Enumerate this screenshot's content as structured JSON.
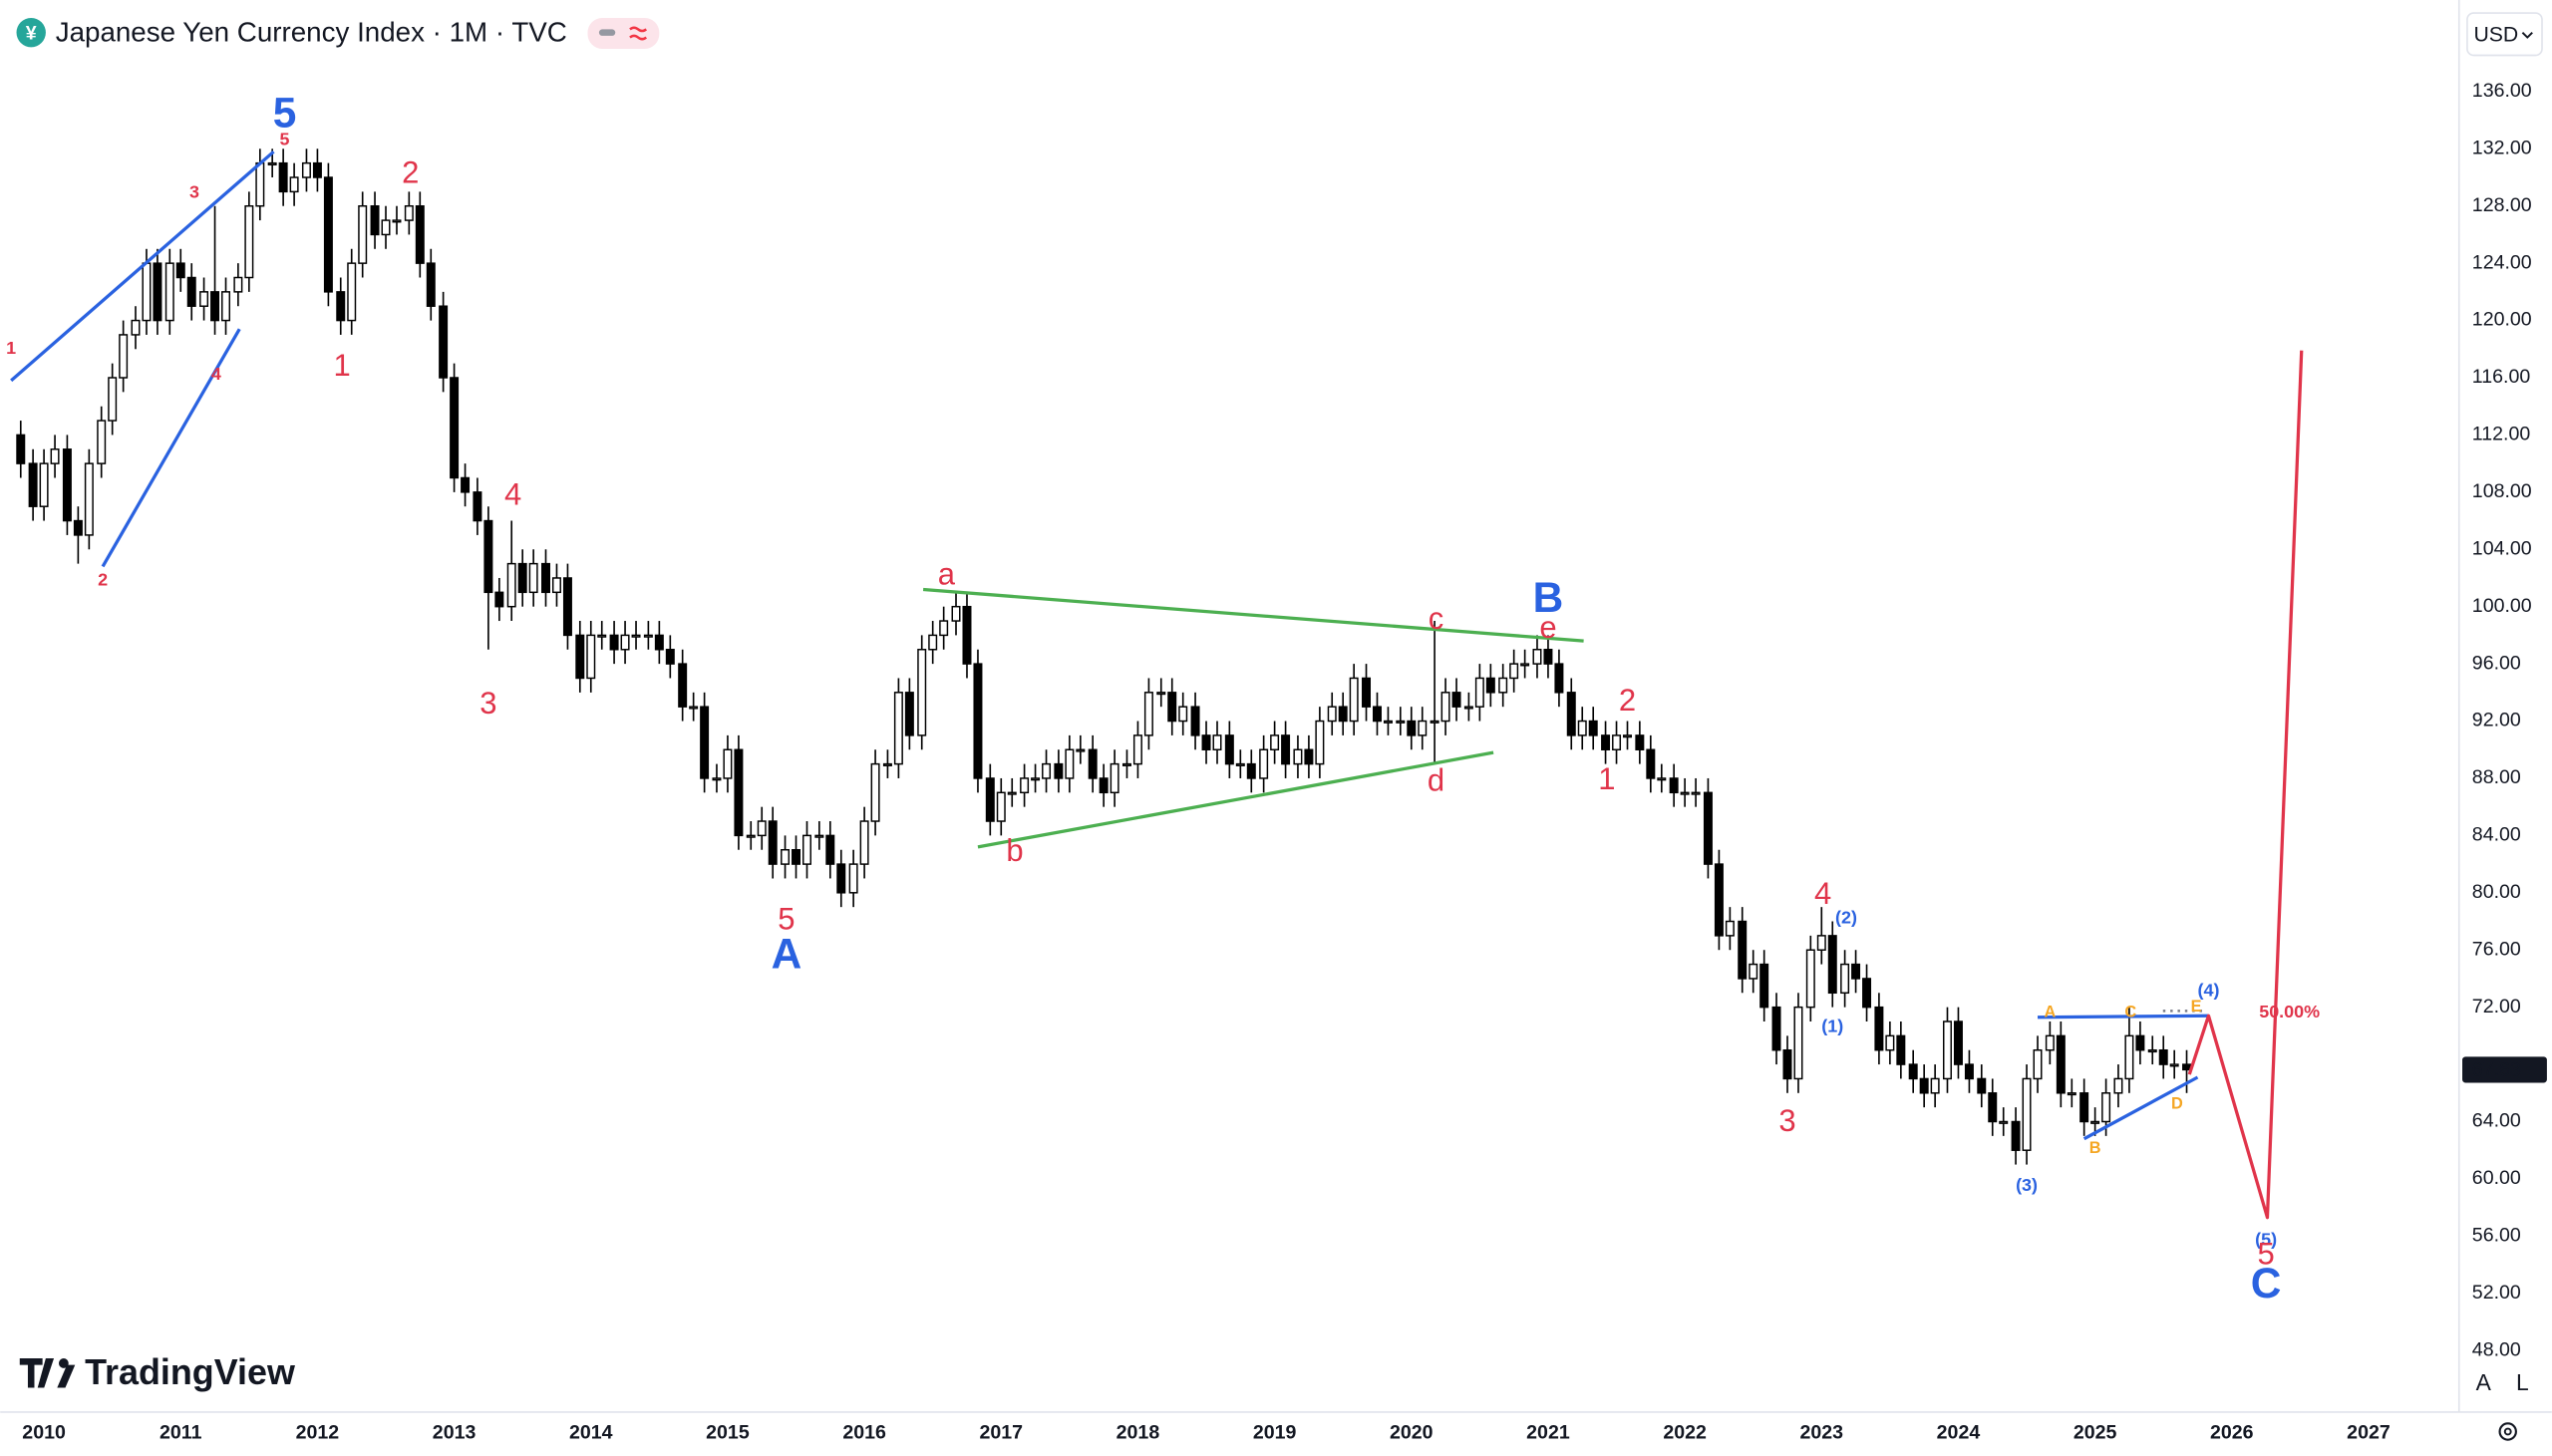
{
  "chart_data": {
    "type": "candlestick",
    "title": "Japanese Yen Currency Index · 1M · TVC",
    "symbol_icon": "¥",
    "currency": "USD",
    "watermark": "TradingView",
    "controls": [
      "A",
      "L"
    ],
    "up_color": "#ffffff",
    "down_color": "#000000",
    "grid": false,
    "xlim": [
      2009.68,
      2027.65
    ],
    "ylim": [
      43.7,
      142.4
    ],
    "xticks": [
      2010,
      2011,
      2012,
      2013,
      2014,
      2015,
      2016,
      2017,
      2018,
      2019,
      2020,
      2021,
      2022,
      2023,
      2024,
      2025,
      2026,
      2027
    ],
    "yticks": [
      {
        "value": 48,
        "label": "48.00"
      },
      {
        "value": 52,
        "label": "52.00"
      },
      {
        "value": 56,
        "label": "56.00"
      },
      {
        "value": 60,
        "label": "60.00"
      },
      {
        "value": 64,
        "label": "64.00"
      },
      {
        "value": 72,
        "label": "72.00"
      },
      {
        "value": 76,
        "label": "76.00"
      },
      {
        "value": 80,
        "label": "80.00"
      },
      {
        "value": 84,
        "label": "84.00"
      },
      {
        "value": 88,
        "label": "88.00"
      },
      {
        "value": 92,
        "label": "92.00"
      },
      {
        "value": 96,
        "label": "96.00"
      },
      {
        "value": 100,
        "label": "100.00"
      },
      {
        "value": 104,
        "label": "104.00"
      },
      {
        "value": 108,
        "label": "108.00"
      },
      {
        "value": 112,
        "label": "112.00"
      },
      {
        "value": 116,
        "label": "116.00"
      },
      {
        "value": 120,
        "label": "120.00"
      },
      {
        "value": 124,
        "label": "124.00"
      },
      {
        "value": 128,
        "label": "128.00"
      },
      {
        "value": 132,
        "label": "132.00"
      },
      {
        "value": 136,
        "label": "136.00"
      }
    ],
    "x": [
      2009.83,
      2009.92,
      2010,
      2010.08,
      2010.17,
      2010.25,
      2010.33,
      2010.42,
      2010.5,
      2010.58,
      2010.67,
      2010.75,
      2010.83,
      2010.92,
      2011,
      2011.08,
      2011.17,
      2011.25,
      2011.33,
      2011.42,
      2011.5,
      2011.58,
      2011.67,
      2011.75,
      2011.83,
      2011.92,
      2012,
      2012.08,
      2012.17,
      2012.25,
      2012.33,
      2012.42,
      2012.5,
      2012.58,
      2012.67,
      2012.75,
      2012.83,
      2012.92,
      2013,
      2013.08,
      2013.17,
      2013.25,
      2013.33,
      2013.42,
      2013.5,
      2013.58,
      2013.67,
      2013.75,
      2013.83,
      2013.92,
      2014,
      2014.08,
      2014.17,
      2014.25,
      2014.33,
      2014.42,
      2014.5,
      2014.58,
      2014.67,
      2014.75,
      2014.83,
      2014.92,
      2015,
      2015.08,
      2015.17,
      2015.25,
      2015.33,
      2015.42,
      2015.5,
      2015.58,
      2015.67,
      2015.75,
      2015.83,
      2015.92,
      2016,
      2016.08,
      2016.17,
      2016.25,
      2016.33,
      2016.42,
      2016.5,
      2016.58,
      2016.67,
      2016.75,
      2016.83,
      2016.92,
      2017,
      2017.08,
      2017.17,
      2017.25,
      2017.33,
      2017.42,
      2017.5,
      2017.58,
      2017.67,
      2017.75,
      2017.83,
      2017.92,
      2018,
      2018.08,
      2018.17,
      2018.25,
      2018.33,
      2018.42,
      2018.5,
      2018.58,
      2018.67,
      2018.75,
      2018.83,
      2018.92,
      2019,
      2019.08,
      2019.17,
      2019.25,
      2019.33,
      2019.42,
      2019.5,
      2019.58,
      2019.67,
      2019.75,
      2019.83,
      2019.92,
      2020,
      2020.08,
      2020.17,
      2020.25,
      2020.33,
      2020.42,
      2020.5,
      2020.58,
      2020.67,
      2020.75,
      2020.83,
      2020.92,
      2021,
      2021.08,
      2021.17,
      2021.25,
      2021.33,
      2021.42,
      2021.5,
      2021.58,
      2021.67,
      2021.75,
      2021.83,
      2021.92,
      2022,
      2022.08,
      2022.17,
      2022.25,
      2022.33,
      2022.42,
      2022.5,
      2022.58,
      2022.67,
      2022.75,
      2022.83,
      2022.92,
      2023,
      2023.08,
      2023.17,
      2023.25,
      2023.33,
      2023.42,
      2023.5,
      2023.58,
      2023.67,
      2023.75,
      2023.83,
      2023.92,
      2024,
      2024.08,
      2024.17,
      2024.25,
      2024.33,
      2024.42,
      2024.5,
      2024.58,
      2024.67,
      2024.75,
      2024.83,
      2024.92,
      2025,
      2025.08,
      2025.17,
      2025.25,
      2025.33,
      2025.42,
      2025.5,
      2025.58,
      2025.67
    ],
    "open": [
      112,
      110,
      107,
      110,
      111,
      106,
      105,
      110,
      113,
      116,
      119,
      120,
      124,
      120,
      124,
      123,
      121,
      122,
      120,
      122,
      123,
      128,
      131,
      131,
      129,
      130,
      131,
      130,
      122,
      120,
      124,
      128,
      126,
      127,
      127,
      128,
      124,
      121,
      116,
      109,
      108,
      106,
      101,
      100,
      103,
      101,
      103,
      101,
      102,
      98,
      95,
      98,
      98,
      97,
      98,
      98,
      98,
      97,
      96,
      93,
      93,
      88,
      88,
      90,
      84,
      84,
      85,
      82,
      83,
      82,
      84,
      84,
      82,
      80,
      82,
      85,
      89,
      89,
      94,
      91,
      97,
      98,
      99,
      100,
      96,
      88,
      85,
      87,
      87,
      88,
      88,
      89,
      88,
      90,
      90,
      88,
      87,
      89,
      89,
      91,
      94,
      94,
      92,
      93,
      91,
      90,
      91,
      89,
      89,
      88,
      90,
      91,
      89,
      90,
      89,
      92,
      93,
      92,
      95,
      93,
      92,
      92,
      92,
      91,
      92,
      92,
      94,
      93,
      93,
      95,
      94,
      95,
      96,
      96,
      97,
      96,
      94,
      91,
      92,
      91,
      90,
      91,
      91,
      90,
      88,
      88,
      87,
      87,
      87,
      82,
      77,
      78,
      74,
      75,
      72,
      69,
      67,
      72,
      76,
      77,
      73,
      75,
      74,
      72,
      69,
      70,
      68,
      67,
      66,
      67,
      71,
      68,
      67,
      66,
      64,
      64,
      62,
      67,
      69,
      70,
      66,
      66,
      64,
      64,
      66,
      67,
      70,
      69,
      69,
      68,
      68
    ],
    "high": [
      113,
      111,
      111,
      112,
      112,
      107,
      111,
      114,
      117,
      120,
      121,
      125,
      125,
      125,
      125,
      124,
      123,
      128,
      123,
      124,
      129,
      132,
      132,
      132,
      131,
      132,
      132,
      131,
      123,
      125,
      129,
      129,
      128,
      128,
      129,
      129,
      125,
      122,
      117,
      110,
      109,
      107,
      102,
      106,
      104,
      104,
      104,
      103,
      103,
      99,
      99,
      99,
      99,
      99,
      99,
      99,
      99,
      98,
      97,
      94,
      94,
      89,
      91,
      91,
      85,
      86,
      86,
      84,
      84,
      85,
      85,
      85,
      83,
      83,
      86,
      90,
      90,
      95,
      95,
      98,
      99,
      100,
      101,
      101,
      97,
      89,
      88,
      88,
      89,
      89,
      90,
      90,
      91,
      91,
      91,
      89,
      90,
      90,
      92,
      95,
      95,
      95,
      94,
      94,
      92,
      92,
      92,
      90,
      90,
      91,
      92,
      92,
      91,
      91,
      93,
      94,
      94,
      96,
      96,
      94,
      93,
      93,
      93,
      93,
      99,
      95,
      95,
      94,
      96,
      96,
      96,
      97,
      97,
      98,
      98,
      97,
      95,
      93,
      93,
      92,
      92,
      92,
      92,
      91,
      89,
      89,
      88,
      88,
      88,
      83,
      79,
      79,
      76,
      76,
      73,
      70,
      73,
      77,
      79,
      78,
      76,
      76,
      75,
      73,
      71,
      71,
      69,
      68,
      68,
      72,
      72,
      69,
      68,
      67,
      65,
      65,
      68,
      70,
      71,
      71,
      67,
      67,
      65,
      67,
      68,
      72,
      71,
      70,
      70,
      69,
      69
    ],
    "low": [
      109,
      106,
      106,
      109,
      105,
      103,
      104,
      109,
      112,
      115,
      118,
      119,
      119,
      119,
      122,
      120,
      120,
      119,
      119,
      121,
      122,
      127,
      130,
      128,
      128,
      129,
      129,
      121,
      119,
      119,
      123,
      125,
      125,
      126,
      126,
      123,
      120,
      115,
      108,
      107,
      105,
      97,
      99,
      99,
      100,
      100,
      100,
      100,
      97,
      94,
      94,
      97,
      96,
      96,
      97,
      97,
      96,
      95,
      92,
      92,
      87,
      87,
      87,
      83,
      83,
      83,
      81,
      81,
      81,
      81,
      83,
      81,
      79,
      79,
      81,
      84,
      88,
      88,
      90,
      90,
      96,
      97,
      98,
      95,
      87,
      84,
      84,
      86,
      86,
      87,
      87,
      87,
      87,
      89,
      87,
      86,
      86,
      88,
      88,
      90,
      93,
      91,
      91,
      90,
      89,
      89,
      88,
      88,
      87,
      87,
      89,
      88,
      88,
      88,
      88,
      91,
      91,
      91,
      92,
      91,
      91,
      91,
      90,
      90,
      89,
      91,
      92,
      92,
      92,
      93,
      93,
      94,
      95,
      95,
      95,
      93,
      90,
      90,
      90,
      89,
      89,
      90,
      89,
      87,
      87,
      86,
      86,
      86,
      81,
      76,
      76,
      73,
      73,
      71,
      68,
      66,
      66,
      71,
      75,
      72,
      72,
      73,
      71,
      68,
      68,
      67,
      66,
      65,
      65,
      66,
      67,
      66,
      65,
      63,
      63,
      61,
      61,
      66,
      68,
      65,
      65,
      63,
      63,
      63,
      65,
      66,
      68,
      68,
      67,
      67,
      66
    ],
    "close": [
      110,
      107,
      110,
      111,
      106,
      105,
      110,
      113,
      116,
      119,
      120,
      124,
      120,
      124,
      123,
      121,
      122,
      120,
      122,
      123,
      128,
      131,
      131,
      129,
      130,
      131,
      130,
      122,
      120,
      124,
      128,
      126,
      127,
      127,
      128,
      124,
      121,
      116,
      109,
      108,
      106,
      101,
      100,
      103,
      101,
      103,
      101,
      102,
      98,
      95,
      98,
      98,
      97,
      98,
      98,
      98,
      97,
      96,
      93,
      93,
      88,
      88,
      90,
      84,
      84,
      85,
      82,
      83,
      82,
      84,
      84,
      82,
      80,
      82,
      85,
      89,
      89,
      94,
      91,
      97,
      98,
      99,
      100,
      96,
      88,
      85,
      87,
      87,
      88,
      88,
      89,
      88,
      90,
      90,
      88,
      87,
      89,
      89,
      91,
      94,
      94,
      92,
      93,
      91,
      90,
      91,
      89,
      89,
      88,
      90,
      91,
      89,
      90,
      89,
      92,
      93,
      92,
      95,
      93,
      92,
      92,
      92,
      91,
      92,
      92,
      94,
      93,
      93,
      95,
      94,
      95,
      96,
      96,
      97,
      96,
      94,
      91,
      92,
      91,
      90,
      91,
      91,
      90,
      88,
      88,
      87,
      87,
      87,
      82,
      77,
      78,
      74,
      75,
      72,
      69,
      67,
      72,
      76,
      77,
      73,
      75,
      74,
      72,
      69,
      70,
      68,
      67,
      66,
      67,
      71,
      68,
      67,
      66,
      64,
      64,
      62,
      67,
      69,
      70,
      66,
      66,
      64,
      64,
      66,
      67,
      70,
      69,
      69,
      68,
      68,
      67.63
    ],
    "annotations": [
      {
        "text": "1",
        "x": 2009.76,
        "y": 118.0,
        "color": "#e0344a",
        "size": "small"
      },
      {
        "text": "2",
        "x": 2010.43,
        "y": 101.8,
        "color": "#e0344a",
        "size": "small"
      },
      {
        "text": "3",
        "x": 2011.1,
        "y": 128.9,
        "color": "#e0344a",
        "size": "small"
      },
      {
        "text": "4",
        "x": 2011.26,
        "y": 116.2,
        "color": "#e0344a",
        "size": "small"
      },
      {
        "text": "5",
        "x": 2011.76,
        "y": 132.6,
        "color": "#e0344a",
        "size": "small"
      },
      {
        "text": "5",
        "x": 2011.76,
        "y": 134.3,
        "color": "#2a62e0",
        "size": "large"
      },
      {
        "text": "2",
        "x": 2012.68,
        "y": 130.2,
        "color": "#e0344a",
        "size": "medium"
      },
      {
        "text": "1",
        "x": 2012.18,
        "y": 116.7,
        "color": "#e0344a",
        "size": "medium"
      },
      {
        "text": "4",
        "x": 2013.43,
        "y": 107.7,
        "color": "#e0344a",
        "size": "medium"
      },
      {
        "text": "3",
        "x": 2013.25,
        "y": 93.1,
        "color": "#e0344a",
        "size": "medium"
      },
      {
        "text": "5",
        "x": 2015.43,
        "y": 78.0,
        "color": "#e0344a",
        "size": "medium"
      },
      {
        "text": "A",
        "x": 2015.43,
        "y": 75.5,
        "color": "#2a62e0",
        "size": "large"
      },
      {
        "text": "a",
        "x": 2016.6,
        "y": 102.1,
        "color": "#e0344a",
        "size": "medium"
      },
      {
        "text": "b",
        "x": 2017.1,
        "y": 82.8,
        "color": "#e0344a",
        "size": "medium"
      },
      {
        "text": "c",
        "x": 2020.18,
        "y": 99.0,
        "color": "#e0344a",
        "size": "medium"
      },
      {
        "text": "d",
        "x": 2020.18,
        "y": 87.7,
        "color": "#e0344a",
        "size": "medium"
      },
      {
        "text": "e",
        "x": 2021.0,
        "y": 98.4,
        "color": "#e0344a",
        "size": "medium"
      },
      {
        "text": "B",
        "x": 2021.0,
        "y": 100.4,
        "color": "#2a62e0",
        "size": "large"
      },
      {
        "text": "2",
        "x": 2021.58,
        "y": 93.3,
        "color": "#e0344a",
        "size": "medium"
      },
      {
        "text": "1",
        "x": 2021.43,
        "y": 87.8,
        "color": "#e0344a",
        "size": "medium"
      },
      {
        "text": "4",
        "x": 2023.01,
        "y": 79.8,
        "color": "#e0344a",
        "size": "medium"
      },
      {
        "text": "(2)",
        "x": 2023.18,
        "y": 78.2,
        "color": "#2a62e0",
        "size": "small"
      },
      {
        "text": "(1)",
        "x": 2023.08,
        "y": 70.6,
        "color": "#2a62e0",
        "size": "small"
      },
      {
        "text": "3",
        "x": 2022.75,
        "y": 63.9,
        "color": "#e0344a",
        "size": "medium"
      },
      {
        "text": "(3)",
        "x": 2024.5,
        "y": 59.5,
        "color": "#2a62e0",
        "size": "small"
      },
      {
        "text": "A",
        "x": 2024.67,
        "y": 71.6,
        "color": "#f5a623",
        "size": "tiny"
      },
      {
        "text": "B",
        "x": 2025.0,
        "y": 62.1,
        "color": "#f5a623",
        "size": "tiny"
      },
      {
        "text": "C",
        "x": 2025.26,
        "y": 71.6,
        "color": "#f5a623",
        "size": "tiny"
      },
      {
        "text": "D",
        "x": 2025.6,
        "y": 65.2,
        "color": "#f5a623",
        "size": "tiny"
      },
      {
        "text": "E",
        "x": 2025.74,
        "y": 72.0,
        "color": "#f5a623",
        "size": "tiny"
      },
      {
        "text": "(4)",
        "x": 2025.83,
        "y": 73.1,
        "color": "#2a62e0",
        "size": "small"
      },
      {
        "text": "50.00%",
        "x": 2026.2,
        "y": 71.6,
        "color": "#e0344a",
        "size": "small"
      },
      {
        "text": "(5)",
        "x": 2026.25,
        "y": 55.7,
        "color": "#2a62e0",
        "size": "small"
      },
      {
        "text": "5",
        "x": 2026.25,
        "y": 54.6,
        "color": "#e0344a",
        "size": "medium"
      },
      {
        "text": "C",
        "x": 2026.25,
        "y": 52.5,
        "color": "#2a62e0",
        "size": "large"
      }
    ],
    "drawings": [
      {
        "color": "#2a62e0",
        "x": [
          2009.76,
          2011.68
        ],
        "y": [
          115.8,
          131.8
        ]
      },
      {
        "color": "#2a62e0",
        "x": [
          2010.43,
          2011.43
        ],
        "y": [
          102.8,
          119.4
        ]
      },
      {
        "color": "#4caf50",
        "x": [
          2016.43,
          2021.26
        ],
        "y": [
          101.2,
          97.6
        ]
      },
      {
        "color": "#4caf50",
        "x": [
          2016.83,
          2020.6
        ],
        "y": [
          83.2,
          89.8
        ]
      },
      {
        "color": "#2a62e0",
        "x": [
          2024.58,
          2025.83
        ],
        "y": [
          71.3,
          71.4
        ]
      },
      {
        "color": "#2a62e0",
        "x": [
          2024.92,
          2025.75
        ],
        "y": [
          62.8,
          67.1
        ]
      },
      {
        "color": "#e0344a",
        "x": [
          2025.69,
          2025.83,
          2026.26,
          2026.51
        ],
        "y": [
          67.3,
          71.4,
          57.3,
          117.9
        ]
      }
    ]
  }
}
